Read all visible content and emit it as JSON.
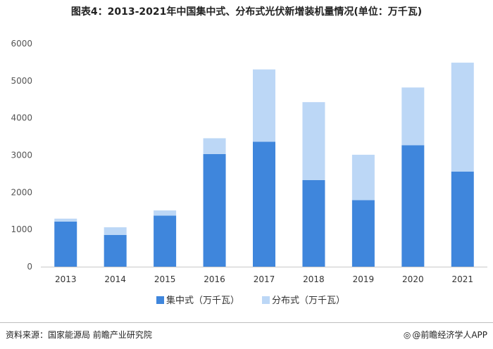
{
  "chart_data": {
    "type": "bar",
    "stacked": true,
    "title": "图表4：2013-2021年中国集中式、分布式光伏新增装机量情况(单位：万千瓦)",
    "categories": [
      "2013",
      "2014",
      "2015",
      "2016",
      "2017",
      "2018",
      "2019",
      "2020",
      "2021"
    ],
    "series": [
      {
        "name": "集中式（万千瓦）",
        "color": "#3f86dc",
        "values": [
          1212,
          855,
          1374,
          3031,
          3362,
          2330,
          1791,
          3268,
          2560
        ]
      },
      {
        "name": "分布式（万千瓦）",
        "color": "#bcd7f6",
        "values": [
          80,
          205,
          139,
          424,
          1944,
          2096,
          1220,
          1552,
          2928
        ]
      }
    ],
    "ylim": [
      0,
      6000
    ],
    "yticks": [
      0,
      1000,
      2000,
      3000,
      4000,
      5000,
      6000
    ],
    "grid": false,
    "legend_position": "bottom"
  },
  "footer": {
    "source": "资料来源：国家能源局 前瞻产业研究院",
    "brand_logo": "◎",
    "brand": "@前瞻经济学人APP"
  }
}
